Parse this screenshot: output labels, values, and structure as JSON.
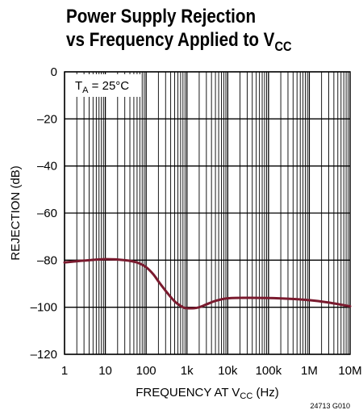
{
  "title": {
    "line1": "Power Supply Rejection",
    "line2_main": "vs Frequency Applied to V",
    "line2_sub": "CC"
  },
  "chart_data": {
    "type": "line",
    "xscale": "log",
    "xlim": [
      1,
      10000000
    ],
    "ylim": [
      -120,
      0
    ],
    "xticks": [
      1,
      10,
      100,
      1000,
      10000,
      100000,
      1000000,
      10000000
    ],
    "xtick_labels": [
      "1",
      "10",
      "100",
      "1k",
      "10k",
      "100k",
      "1M",
      "10M"
    ],
    "yticks": [
      0,
      -20,
      -40,
      -60,
      -80,
      -100,
      -120
    ],
    "ytick_labels": [
      "0",
      "–20",
      "–40",
      "–60",
      "–80",
      "–100",
      "–120"
    ],
    "xlabel_main": "FREQUENCY AT V",
    "xlabel_sub": "CC",
    "xlabel_tail": " (Hz)",
    "ylabel": "REJECTION (dB)",
    "annotation": {
      "main": "T",
      "sub": "A",
      "tail": " = 25°C"
    },
    "figure_code": "24713 G010",
    "grid": true,
    "series": [
      {
        "color": "#7a1a2e",
        "x": [
          1,
          3,
          10,
          30,
          60,
          100,
          150,
          200,
          300,
          500,
          800,
          1000,
          1500,
          2000,
          3000,
          5000,
          10000,
          30000,
          100000,
          300000,
          1000000,
          3000000,
          10000000
        ],
        "y": [
          -81,
          -80.2,
          -79.6,
          -80,
          -81,
          -83,
          -86,
          -89,
          -93,
          -97.5,
          -100,
          -100.4,
          -100.4,
          -100,
          -98.8,
          -97.3,
          -96.2,
          -96,
          -96.1,
          -96.4,
          -97,
          -98,
          -99.6
        ]
      }
    ]
  }
}
